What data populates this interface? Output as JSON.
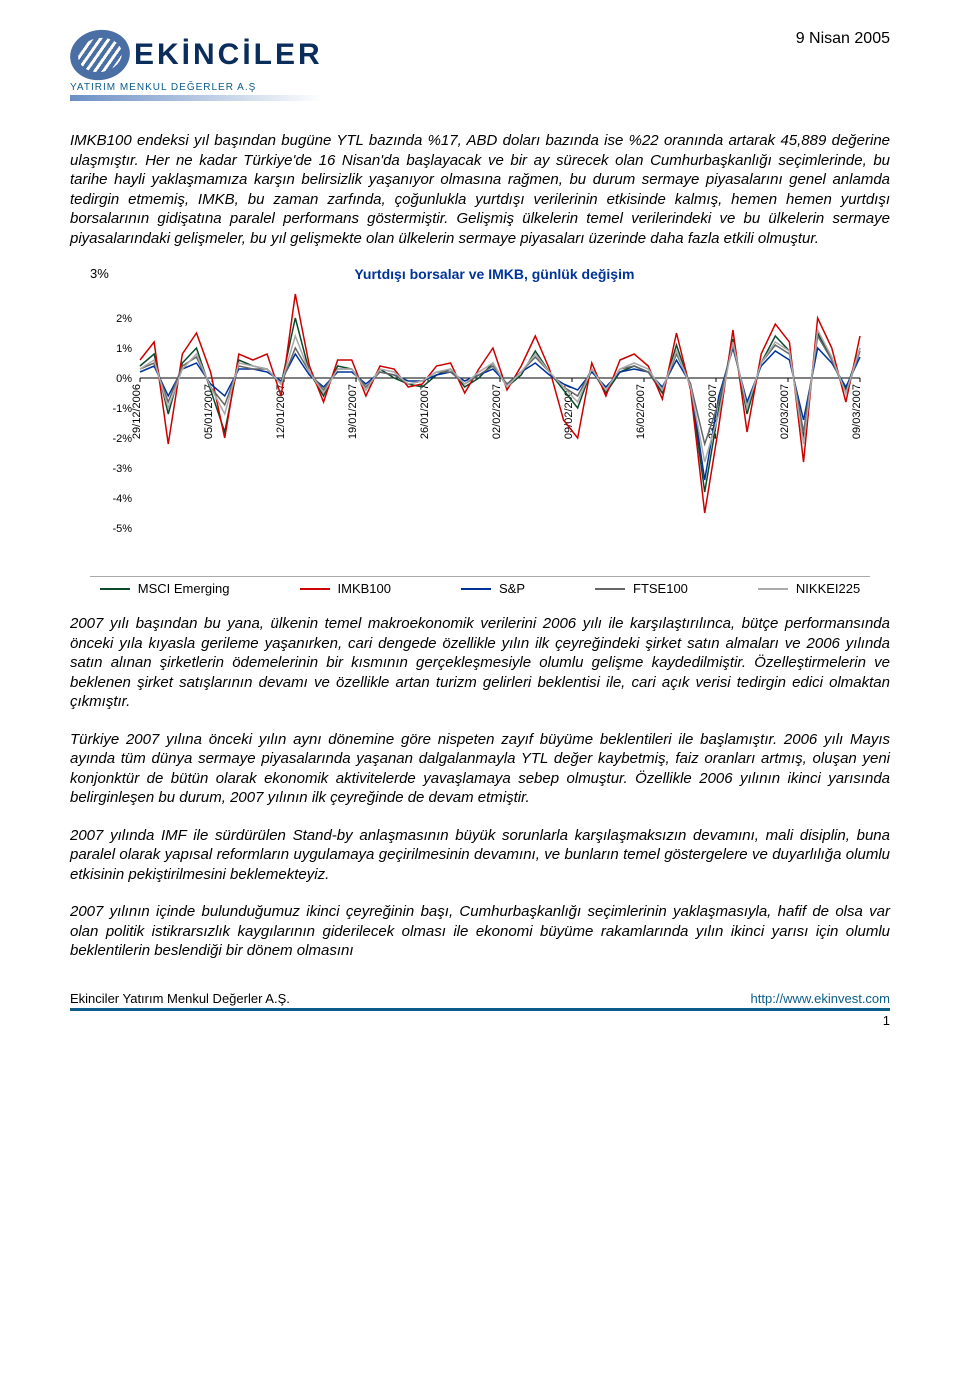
{
  "header": {
    "brand": "EKİNCİLER",
    "brand_sub": "YATIRIM MENKUL DEĞERLER A.Ş",
    "date": "9 Nisan 2005"
  },
  "para1": "IMKB100 endeksi yıl başından bugüne YTL bazında %17, ABD doları bazında ise %22 oranında artarak 45,889 değerine ulaşmıştır.  Her ne kadar Türkiye'de 16 Nisan'da başlayacak ve bir ay sürecek olan Cumhurbaşkanlığı seçimlerinde, bu tarihe hayli yaklaşmamıza karşın belirsizlik yaşanıyor olmasına rağmen, bu durum sermaye piyasalarını genel anlamda tedirgin etmemiş, IMKB, bu zaman zarfında, çoğunlukla yurtdışı verilerinin etkisinde kalmış, hemen hemen yurtdışı borsalarının gidişatına paralel performans göstermiştir.  Gelişmiş ülkelerin temel verilerindeki ve bu ülkelerin sermaye piyasalarındaki gelişmeler, bu yıl gelişmekte olan ülkelerin sermaye piyasaları üzerinde daha fazla etkili olmuştur.",
  "chart": {
    "title": "Yurtdışı borsalar ve IMKB, günlük değişim",
    "type": "line",
    "ylabel_format": "percent",
    "y_ticks": [
      "3%",
      "2%",
      "1%",
      "0%",
      "-1%",
      "-2%",
      "-3%",
      "-4%",
      "-5%"
    ],
    "ylim": [
      -5,
      3
    ],
    "x_labels": [
      "29/12/2006",
      "05/01/2007",
      "12/01/2007",
      "19/01/2007",
      "26/01/2007",
      "02/02/2007",
      "09/02/2007",
      "16/02/2007",
      "23/02/2007",
      "02/03/2007",
      "09/03/2007"
    ],
    "background_color": "#ffffff",
    "axis_color": "#000000",
    "grid_on": false,
    "line_width": 1.5,
    "series": [
      {
        "name": "MSCI Emerging",
        "color": "#0a4a2a",
        "values": [
          0.4,
          0.8,
          -1.2,
          0.5,
          1.0,
          -0.4,
          -1.8,
          0.6,
          0.4,
          0.3,
          -0.2,
          2.0,
          0.2,
          -0.6,
          0.4,
          0.3,
          -0.4,
          0.3,
          0.0,
          -0.2,
          -0.3,
          0.1,
          0.3,
          -0.3,
          0.0,
          0.5,
          -0.3,
          0.1,
          0.9,
          0.2,
          -0.4,
          -1.0,
          0.3,
          -0.5,
          0.2,
          0.4,
          0.2,
          -0.5,
          1.1,
          -0.3,
          -3.8,
          -1.0,
          1.3,
          -1.2,
          0.5,
          1.4,
          0.9,
          -2.0,
          1.5,
          0.6,
          -0.4,
          1.0
        ]
      },
      {
        "name": "IMKB100",
        "color": "#cc0000",
        "values": [
          0.6,
          1.2,
          -2.2,
          0.8,
          1.5,
          0.2,
          -2.0,
          0.8,
          0.6,
          0.8,
          -0.6,
          2.8,
          0.4,
          -0.8,
          0.6,
          0.6,
          -0.6,
          0.4,
          0.3,
          -0.3,
          -0.2,
          0.4,
          0.5,
          -0.5,
          0.3,
          1.0,
          -0.4,
          0.4,
          1.4,
          0.3,
          -1.4,
          -2.0,
          0.5,
          -0.6,
          0.6,
          0.8,
          0.4,
          -0.7,
          1.5,
          -0.4,
          -4.5,
          -1.6,
          1.6,
          -1.8,
          0.8,
          1.8,
          1.2,
          -2.8,
          2.0,
          1.0,
          -0.8,
          1.4
        ]
      },
      {
        "name": "S&P",
        "color": "#003399",
        "values": [
          0.2,
          0.4,
          -0.6,
          0.3,
          0.5,
          -0.2,
          -0.6,
          0.3,
          0.3,
          0.2,
          -0.1,
          0.8,
          0.1,
          -0.3,
          0.2,
          0.2,
          -0.2,
          0.2,
          0.1,
          -0.1,
          -0.1,
          0.1,
          0.2,
          -0.1,
          0.1,
          0.3,
          -0.2,
          0.2,
          0.5,
          0.1,
          -0.2,
          -0.4,
          0.2,
          -0.3,
          0.2,
          0.3,
          0.2,
          -0.3,
          0.6,
          -0.2,
          -3.4,
          -0.6,
          1.0,
          -0.8,
          0.4,
          0.9,
          0.6,
          -1.4,
          1.0,
          0.5,
          -0.3,
          0.7
        ]
      },
      {
        "name": "FTSE100",
        "color": "#666666",
        "values": [
          0.3,
          0.5,
          -0.8,
          0.4,
          0.7,
          -0.3,
          -0.9,
          0.4,
          0.3,
          0.3,
          -0.2,
          1.0,
          0.2,
          -0.4,
          0.3,
          0.3,
          -0.3,
          0.2,
          0.1,
          -0.2,
          -0.1,
          0.2,
          0.2,
          -0.2,
          0.1,
          0.4,
          -0.2,
          0.2,
          0.7,
          0.2,
          -0.3,
          -0.6,
          0.3,
          -0.4,
          0.3,
          0.4,
          0.2,
          -0.4,
          0.8,
          -0.2,
          -2.2,
          -0.8,
          1.1,
          -1.0,
          0.5,
          1.1,
          0.8,
          -1.8,
          1.4,
          0.6,
          -0.5,
          0.9
        ]
      },
      {
        "name": "NIKKEI225",
        "color": "#aaaaaa",
        "values": [
          0.3,
          0.6,
          -1.0,
          0.3,
          0.8,
          -0.3,
          -1.2,
          0.5,
          0.4,
          0.3,
          -0.2,
          1.4,
          0.2,
          -0.5,
          0.3,
          0.3,
          -0.4,
          0.3,
          0.2,
          -0.2,
          -0.1,
          0.2,
          0.3,
          -0.2,
          0.2,
          0.5,
          -0.3,
          0.2,
          0.8,
          0.2,
          -0.3,
          -0.8,
          0.3,
          -0.4,
          0.3,
          0.5,
          0.3,
          -0.4,
          0.9,
          -0.3,
          -2.8,
          -1.2,
          1.2,
          -1.0,
          0.5,
          1.2,
          0.9,
          -2.2,
          1.6,
          0.7,
          -0.5,
          1.0
        ]
      }
    ]
  },
  "para2": "2007 yılı başından bu yana, ülkenin temel makroekonomik verilerini 2006 yılı ile karşılaştırılınca, bütçe performansında önceki yıla kıyasla gerileme yaşanırken, cari dengede özellikle yılın ilk çeyreğindeki şirket satın almaları ve 2006 yılında satın alınan şirketlerin  ödemelerinin bir kısmının gerçekleşmesiyle olumlu gelişme kaydedilmiştir.  Özelleştirmelerin ve beklenen şirket satışlarının devamı ve özellikle artan turizm gelirleri beklentisi ile, cari açık verisi tedirgin edici olmaktan çıkmıştır.",
  "para3": "Türkiye 2007 yılına önceki yılın aynı dönemine göre nispeten zayıf büyüme beklentileri ile başlamıştır.  2006 yılı Mayıs ayında tüm dünya sermaye piyasalarında yaşanan dalgalanmayla YTL değer kaybetmiş, faiz oranları artmış, oluşan yeni konjonktür de bütün olarak ekonomik aktivitelerde yavaşlamaya sebep olmuştur. Özellikle 2006 yılının ikinci yarısında belirginleşen bu durum, 2007 yılının ilk çeyreğinde de devam etmiştir.",
  "para4": "2007 yılında IMF ile sürdürülen Stand-by anlaşmasının büyük sorunlarla karşılaşmaksızın devamını, mali disiplin, buna paralel olarak yapısal reformların uygulamaya geçirilmesinin devamını, ve bunların temel göstergelere ve duyarlılığa olumlu etkisinin pekiştirilmesini beklemekteyiz.",
  "para5": "2007 yılının içinde bulunduğumuz ikinci çeyreğinin başı, Cumhurbaşkanlığı seçimlerinin yaklaşmasıyla, hafif de olsa var olan politik istikrarsızlık kaygılarının giderilecek olması ile ekonomi büyüme rakamlarında yılın ikinci yarısı için olumlu beklentilerin beslendiği bir dönem olmasını",
  "footer": {
    "left": "Ekinciler Yatırım Menkul Değerler A.Ş.",
    "right": "http://www.ekinvest.com",
    "page": "1"
  }
}
